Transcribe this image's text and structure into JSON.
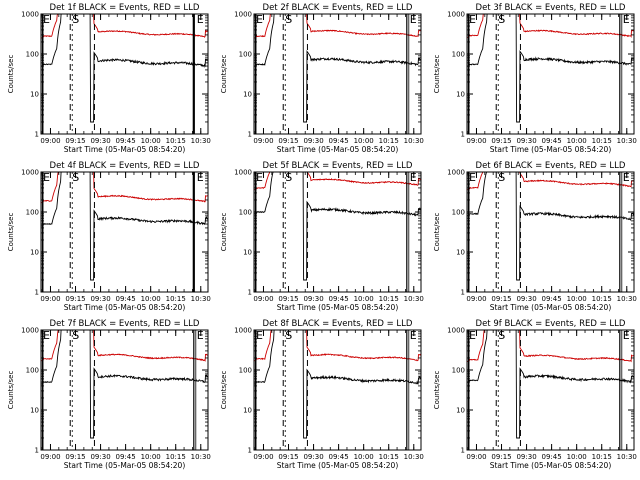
{
  "chart_data": {
    "type": "line",
    "yscale": "log",
    "ylim": [
      1,
      1000
    ],
    "y_ticks": [
      "1",
      "10",
      "100",
      "1000"
    ],
    "ylabel": "Counts/sec",
    "xlabel": "Start Time (05-Mar-05 08:54:20)",
    "x_tick_labels": [
      "09:00",
      "09:15",
      "09:30",
      "09:45",
      "10:00",
      "10:15",
      "10:30"
    ],
    "x_tick_minutes": [
      5.67,
      20.67,
      35.67,
      50.67,
      65.67,
      80.67,
      95.67
    ],
    "x_range_minutes": [
      0,
      100
    ],
    "series_colors": {
      "events": "#000000",
      "lld": "#cc0000"
    },
    "marker_letters": {
      "end": "E",
      "start": "S"
    },
    "panels": [
      {
        "title": "Det  1f  BLACK = Events, RED = LLD",
        "events_level": 55,
        "events_after": 70,
        "lld_level": 280,
        "lld_after": 370,
        "solid_marker": true
      },
      {
        "title": "Det  2f  BLACK = Events, RED = LLD",
        "events_level": 55,
        "events_after": 75,
        "lld_level": 280,
        "lld_after": 380,
        "solid_marker": false
      },
      {
        "title": "Det  3f  BLACK = Events, RED = LLD",
        "events_level": 55,
        "events_after": 75,
        "lld_level": 290,
        "lld_after": 380,
        "solid_marker": false
      },
      {
        "title": "Det  4f  BLACK = Events, RED = LLD",
        "events_level": 50,
        "events_after": 70,
        "lld_level": 190,
        "lld_after": 250,
        "solid_marker": true
      },
      {
        "title": "Det  5f  BLACK = Events, RED = LLD",
        "events_level": 100,
        "events_after": 115,
        "lld_level": 400,
        "lld_after": 650,
        "solid_marker": false
      },
      {
        "title": "Det  6f  BLACK = Events, RED = LLD",
        "events_level": 90,
        "events_after": 90,
        "lld_level": 400,
        "lld_after": 600,
        "solid_marker": false
      },
      {
        "title": "Det  7f  BLACK = Events, RED = LLD",
        "events_level": 50,
        "events_after": 70,
        "lld_level": 190,
        "lld_after": 240,
        "solid_marker": false
      },
      {
        "title": "Det  8f  BLACK = Events, RED = LLD",
        "events_level": 50,
        "events_after": 65,
        "lld_level": 190,
        "lld_after": 240,
        "solid_marker": false
      },
      {
        "title": "Det  9f  BLACK = Events, RED = LLD",
        "events_level": 55,
        "events_after": 70,
        "lld_level": 180,
        "lld_after": 230,
        "solid_marker": false
      }
    ]
  }
}
